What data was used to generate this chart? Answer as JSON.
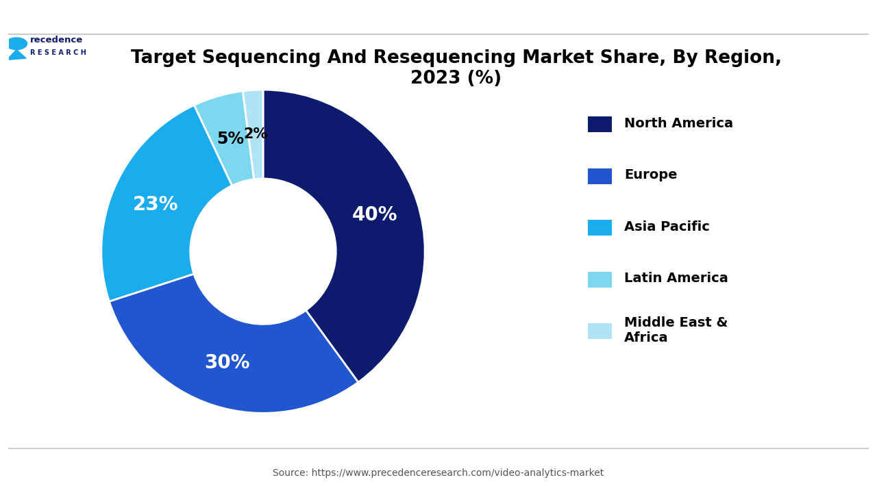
{
  "title": "Target Sequencing And Resequencing Market Share, By Region,\n2023 (%)",
  "slices": [
    40,
    30,
    23,
    5,
    2
  ],
  "labels": [
    "North America",
    "Europe",
    "Asia Pacific",
    "Latin America",
    "Middle East &\nAfrica"
  ],
  "slice_colors": [
    "#0d1b6e",
    "#2255d0",
    "#1aacec",
    "#7dd8ef",
    "#b0e4f5"
  ],
  "pct_labels": [
    "40%",
    "30%",
    "23%",
    "5%",
    "2%"
  ],
  "pct_colors": [
    "white",
    "white",
    "white",
    "black",
    "black"
  ],
  "pct_fontsize": [
    20,
    20,
    20,
    17,
    15
  ],
  "source_text": "Source: https://www.precedenceresearch.com/video-analytics-market",
  "background_color": "#ffffff"
}
